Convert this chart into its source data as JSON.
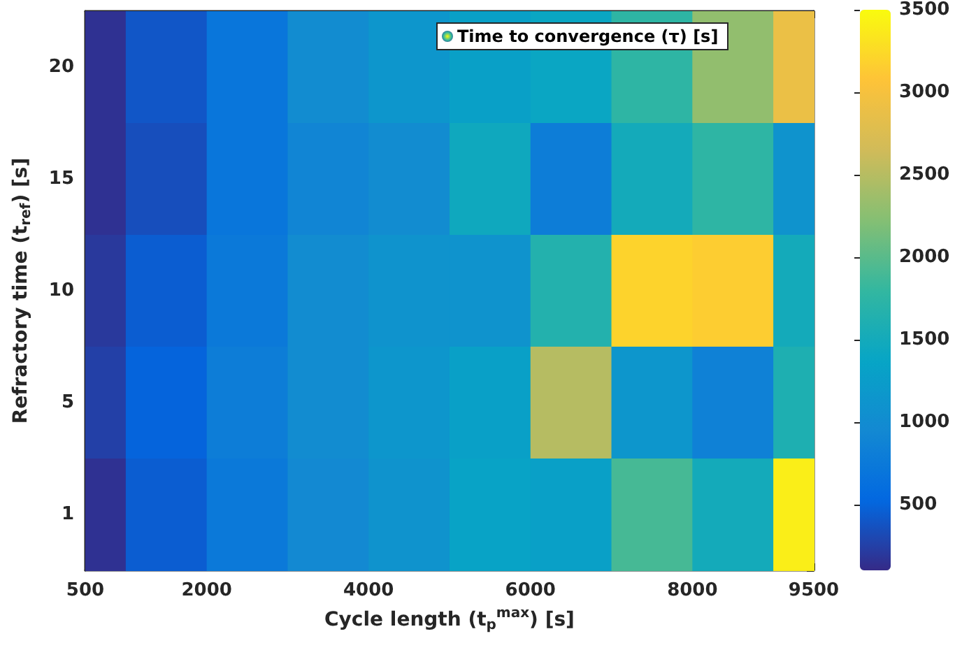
{
  "chart_data": {
    "type": "heatmap",
    "xlabel": "Cycle length (t$_{p}$$^{max}$) [s]",
    "ylabel": "Refractory time (t$_{ref}$) [s]",
    "clabel": "Time to convergence (τ) [s]",
    "x": [
      500,
      1500,
      2500,
      3500,
      4500,
      5500,
      6500,
      7500,
      8500,
      9500
    ],
    "y_categories": [
      "20",
      "15",
      "10",
      "5",
      "1"
    ],
    "cells": [
      [
        150,
        400,
        700,
        1000,
        1150,
        1300,
        1400,
        1750,
        2300,
        2900
      ],
      [
        150,
        350,
        700,
        900,
        1000,
        1450,
        800,
        1500,
        1750,
        1100
      ],
      [
        200,
        450,
        750,
        1000,
        1100,
        1100,
        1650,
        3200,
        3150,
        1500
      ],
      [
        250,
        500,
        800,
        1000,
        1150,
        1300,
        2500,
        1150,
        850,
        1600
      ],
      [
        150,
        450,
        750,
        950,
        1100,
        1350,
        1300,
        1900,
        1500,
        3400
      ]
    ],
    "xlim": [
      500,
      9500
    ],
    "xticks": [
      500,
      2000,
      4000,
      6000,
      8000,
      9500
    ],
    "clim": [
      100,
      3500
    ],
    "cticks": [
      500,
      1000,
      1500,
      2000,
      2500,
      3000,
      3500
    ],
    "grid": false
  }
}
